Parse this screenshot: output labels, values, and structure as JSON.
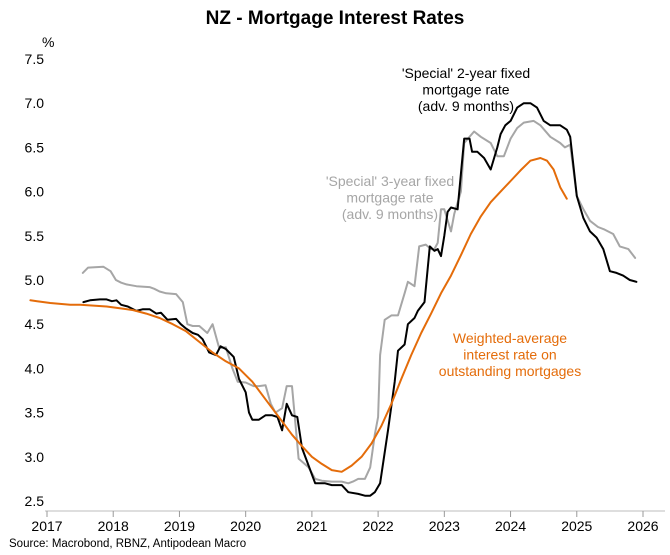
{
  "chart_data": {
    "type": "line",
    "title": "NZ - Mortgage Interest Rates",
    "ylabel": "%",
    "ylim": [
      2.4,
      7.6
    ],
    "yticks": [
      2.5,
      3.0,
      3.5,
      4.0,
      4.5,
      5.0,
      5.5,
      6.0,
      6.5,
      7.0,
      7.5
    ],
    "xlim": [
      2016.75,
      2026.25
    ],
    "xticks": [
      "2017",
      "2018",
      "2019",
      "2020",
      "2021",
      "2022",
      "2023",
      "2024",
      "2025",
      "2026"
    ],
    "grid": false,
    "source": "Source: Macrobond, RBNZ, Antipodean Macro",
    "series": [
      {
        "name": "'Special' 3-year fixed mortgage rate (adv. 9 months)",
        "color": "#a6a6a6",
        "label_lines": [
          "'Special' 3-year fixed",
          "mortgage rate",
          "(adv. 9 months)"
        ],
        "x": [
          2017.54,
          2017.62,
          2017.85,
          2017.96,
          2018.04,
          2018.12,
          2018.2,
          2018.35,
          2018.55,
          2018.62,
          2018.7,
          2018.8,
          2018.95,
          2019.05,
          2019.12,
          2019.2,
          2019.3,
          2019.42,
          2019.5,
          2019.6,
          2019.7,
          2019.8,
          2019.88,
          2020.0,
          2020.12,
          2020.2,
          2020.3,
          2020.38,
          2020.45,
          2020.55,
          2020.62,
          2020.7,
          2020.8,
          2020.95,
          2021.05,
          2021.15,
          2021.3,
          2021.45,
          2021.55,
          2021.62,
          2021.7,
          2021.8,
          2021.88,
          2021.95,
          2022.0,
          2022.03,
          2022.1,
          2022.2,
          2022.3,
          2022.4,
          2022.45,
          2022.55,
          2022.62,
          2022.72,
          2022.8,
          2022.85,
          2022.9,
          2022.95,
          2023.0,
          2023.1,
          2023.15,
          2023.25,
          2023.3,
          2023.45,
          2023.55,
          2023.7,
          2023.8,
          2023.9,
          2024.0,
          2024.1,
          2024.2,
          2024.35,
          2024.45,
          2024.6,
          2024.75,
          2024.82,
          2024.9,
          2025.0,
          2025.1,
          2025.2,
          2025.32,
          2025.42,
          2025.55,
          2025.65,
          2025.78,
          2025.88
        ],
        "y": [
          5.08,
          5.14,
          5.15,
          5.1,
          5.0,
          4.97,
          4.95,
          4.93,
          4.92,
          4.9,
          4.87,
          4.85,
          4.84,
          4.75,
          4.5,
          4.48,
          4.48,
          4.4,
          4.5,
          4.23,
          4.24,
          4.0,
          3.85,
          3.84,
          3.8,
          3.8,
          3.81,
          3.6,
          3.5,
          3.55,
          3.8,
          3.8,
          2.98,
          2.88,
          2.75,
          2.73,
          2.72,
          2.72,
          2.7,
          2.72,
          2.75,
          2.75,
          2.88,
          3.25,
          3.45,
          4.15,
          4.55,
          4.6,
          4.6,
          4.85,
          4.98,
          4.93,
          5.38,
          5.4,
          5.35,
          5.35,
          5.42,
          5.8,
          5.8,
          5.55,
          5.75,
          6.0,
          6.55,
          6.68,
          6.62,
          6.55,
          6.4,
          6.4,
          6.6,
          6.72,
          6.78,
          6.8,
          6.75,
          6.62,
          6.55,
          6.5,
          6.53,
          5.95,
          5.8,
          5.67,
          5.6,
          5.57,
          5.52,
          5.38,
          5.35,
          5.25
        ]
      },
      {
        "name": "'Special' 2-year fixed mortgage rate (adv. 9 months)",
        "color": "#000000",
        "label_lines": [
          "'Special' 2-year fixed",
          "mortgage rate",
          "(adv. 9 months)"
        ],
        "x": [
          2017.55,
          2017.65,
          2017.8,
          2017.9,
          2017.98,
          2018.05,
          2018.12,
          2018.22,
          2018.35,
          2018.45,
          2018.55,
          2018.65,
          2018.72,
          2018.82,
          2018.95,
          2019.02,
          2019.1,
          2019.2,
          2019.28,
          2019.35,
          2019.45,
          2019.55,
          2019.62,
          2019.7,
          2019.82,
          2019.9,
          2020.0,
          2020.05,
          2020.1,
          2020.2,
          2020.3,
          2020.4,
          2020.48,
          2020.55,
          2020.62,
          2020.7,
          2020.78,
          2020.85,
          2020.95,
          2021.05,
          2021.2,
          2021.3,
          2021.45,
          2021.55,
          2021.7,
          2021.8,
          2021.88,
          2021.95,
          2022.03,
          2022.08,
          2022.15,
          2022.25,
          2022.3,
          2022.4,
          2022.45,
          2022.55,
          2022.6,
          2022.7,
          2022.78,
          2022.85,
          2022.9,
          2022.95,
          2023.0,
          2023.05,
          2023.1,
          2023.2,
          2023.25,
          2023.3,
          2023.38,
          2023.42,
          2023.5,
          2023.6,
          2023.7,
          2023.8,
          2023.85,
          2023.92,
          2024.0,
          2024.1,
          2024.2,
          2024.3,
          2024.4,
          2024.5,
          2024.6,
          2024.75,
          2024.85,
          2024.9,
          2025.0,
          2025.1,
          2025.2,
          2025.3,
          2025.4,
          2025.5,
          2025.6,
          2025.7,
          2025.8,
          2025.9
        ],
        "y": [
          4.75,
          4.77,
          4.78,
          4.78,
          4.76,
          4.77,
          4.72,
          4.7,
          4.65,
          4.67,
          4.67,
          4.62,
          4.63,
          4.55,
          4.56,
          4.5,
          4.45,
          4.4,
          4.38,
          4.33,
          4.18,
          4.15,
          4.25,
          4.22,
          4.13,
          3.88,
          3.73,
          3.5,
          3.42,
          3.42,
          3.47,
          3.47,
          3.45,
          3.3,
          3.6,
          3.47,
          3.45,
          3.1,
          2.9,
          2.7,
          2.7,
          2.68,
          2.68,
          2.6,
          2.58,
          2.56,
          2.56,
          2.6,
          2.7,
          2.95,
          3.3,
          3.85,
          4.2,
          4.27,
          4.5,
          4.57,
          4.65,
          4.75,
          5.38,
          5.33,
          5.35,
          5.27,
          5.5,
          5.77,
          5.82,
          5.8,
          6.2,
          6.6,
          6.6,
          6.45,
          6.45,
          6.38,
          6.25,
          6.5,
          6.65,
          6.75,
          6.8,
          6.95,
          7.0,
          7.0,
          6.95,
          6.8,
          6.75,
          6.75,
          6.7,
          6.62,
          5.95,
          5.7,
          5.55,
          5.48,
          5.35,
          5.1,
          5.08,
          5.05,
          5.0,
          4.98
        ]
      },
      {
        "name": "Weighted-average interest rate on outstanding mortgages",
        "color": "#e46c0a",
        "label_lines": [
          "Weighted-average",
          "interest rate on",
          "outstanding mortgages"
        ],
        "x": [
          2016.75,
          2016.85,
          2016.95,
          2017.05,
          2017.2,
          2017.35,
          2017.5,
          2017.7,
          2017.9,
          2018.1,
          2018.3,
          2018.5,
          2018.7,
          2018.9,
          2019.1,
          2019.3,
          2019.5,
          2019.7,
          2019.9,
          2020.1,
          2020.3,
          2020.5,
          2020.7,
          2020.85,
          2021.0,
          2021.15,
          2021.3,
          2021.45,
          2021.6,
          2021.75,
          2021.9,
          2022.05,
          2022.2,
          2022.35,
          2022.5,
          2022.65,
          2022.8,
          2022.95,
          2023.1,
          2023.25,
          2023.4,
          2023.55,
          2023.7,
          2023.85,
          2024.0,
          2024.15,
          2024.3,
          2024.45,
          2024.55,
          2024.65,
          2024.75,
          2024.85
        ],
        "y": [
          4.77,
          4.76,
          4.75,
          4.74,
          4.73,
          4.72,
          4.72,
          4.71,
          4.7,
          4.68,
          4.66,
          4.62,
          4.57,
          4.5,
          4.42,
          4.3,
          4.18,
          4.08,
          4.0,
          3.85,
          3.65,
          3.45,
          3.25,
          3.12,
          3.0,
          2.92,
          2.85,
          2.83,
          2.9,
          3.0,
          3.15,
          3.35,
          3.6,
          3.88,
          4.15,
          4.4,
          4.62,
          4.85,
          5.05,
          5.28,
          5.52,
          5.72,
          5.88,
          6.0,
          6.12,
          6.24,
          6.35,
          6.38,
          6.35,
          6.25,
          6.05,
          5.92
        ]
      }
    ]
  }
}
